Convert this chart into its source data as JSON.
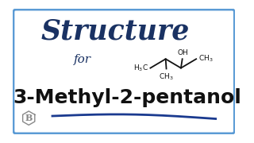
{
  "bg_color": "#ffffff",
  "border_color": "#5b9bd5",
  "title_text": "Structure",
  "title_color": "#1a3263",
  "for_text": "for",
  "for_color": "#1a3263",
  "compound_text": "3-Methyl-2-pentanol",
  "compound_color": "#111111",
  "underline_color": "#1a3a8f",
  "struct_color": "#111111",
  "badge_color": "#888888",
  "figsize": [
    3.2,
    1.8
  ],
  "dpi": 100
}
